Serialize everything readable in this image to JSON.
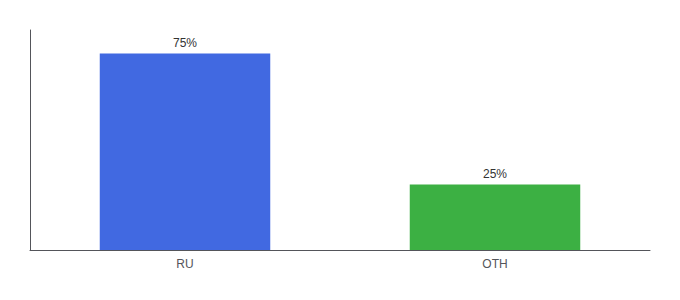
{
  "chart_data": {
    "type": "bar",
    "categories": [
      "RU",
      "OTH"
    ],
    "values": [
      75,
      25
    ],
    "value_labels": [
      "75%",
      "25%"
    ],
    "colors": [
      "#4169e1",
      "#3cb043"
    ],
    "ylim": [
      0,
      84
    ],
    "grid": false,
    "data_labels": true,
    "tick_labels": "x"
  }
}
